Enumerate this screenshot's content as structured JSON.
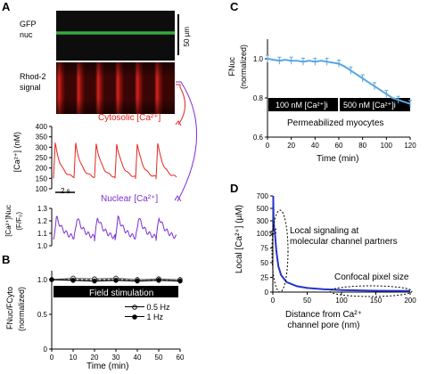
{
  "panels": {
    "A": {
      "letter": "A",
      "gfp_label_line1": "GFP",
      "gfp_label_line2": "nuc",
      "scale_label": "50 µm",
      "rhod_label_line1": "Rhod-2",
      "rhod_label_line2": "signal",
      "cyto_title": "Cytosolic [Ca²⁺]",
      "cyto_ylabel": "[Ca²⁺] (nM)",
      "time_scale": "2 s",
      "nuc_title": "Nuclear [Ca²⁺]",
      "nuc_ylabel_line1": "[Ca²⁺]Nuc",
      "nuc_ylabel_line2": "(F/F₀)"
    },
    "B": {
      "letter": "B",
      "bar_label": "Field stimulation",
      "ylabel_line1": "FNuc/FCyto",
      "ylabel_line2": "(normalized)",
      "xlabel": "Time (min)",
      "legend_05": "0.5 Hz",
      "legend_1": "1 Hz"
    },
    "C": {
      "letter": "C",
      "ylabel_line1": "FNuc",
      "ylabel_line2": "(normalized)",
      "xlabel": "Time (min)",
      "bar_left": "100 nM [Ca²⁺]i",
      "bar_right": "500 nM [Ca²⁺]i",
      "caption": "Permeabilized myocytes"
    },
    "D": {
      "letter": "D",
      "ylabel": "Local [Ca²⁺] (µM)",
      "xlabel_line1": "Distance from Ca²⁺",
      "xlabel_line2": "channel pore (nm)",
      "annotation_local": "Local signaling at molecular channel partners",
      "annotation_local_l1": "Local signaling at",
      "annotation_local_l2": "molecular channel partners",
      "annotation_pixel": "Confocal pixel size"
    }
  },
  "colors": {
    "cyto": "#e8231c",
    "nuc": "#7b2fd1",
    "panelC": "#5aa6e0",
    "panelD": "#2633c9",
    "gfp": "#2fa83a"
  },
  "chart_data": [
    {
      "id": "A-cyto",
      "type": "line",
      "ylabel": "[Ca²⁺] (nM)",
      "ylim": [
        100,
        400
      ],
      "yticks": [
        100,
        150,
        200,
        250,
        300,
        350,
        400
      ],
      "transients": 6,
      "baseline": 150,
      "peak": 320
    },
    {
      "id": "A-nuc",
      "type": "line",
      "ylim": [
        1.0,
        1.3
      ],
      "yticks": [
        1.0,
        1.1,
        1.2,
        1.3
      ],
      "transients": 6,
      "baseline": 1.05,
      "peak": 1.23
    },
    {
      "id": "B",
      "type": "line",
      "xlabel": "Time (min)",
      "ylim": [
        0,
        1.0
      ],
      "yticks": [
        0,
        0.5,
        1.0
      ],
      "xticks": [
        0,
        10,
        20,
        30,
        40,
        50,
        60
      ],
      "series": [
        {
          "name": "0.5 Hz",
          "x": [
            0,
            10,
            20,
            30,
            40,
            50,
            60
          ],
          "y": [
            1.0,
            1.02,
            1.01,
            1.02,
            1.0,
            1.01,
            1.0
          ]
        },
        {
          "name": "1 Hz",
          "x": [
            0,
            10,
            20,
            30,
            40,
            50,
            60
          ],
          "y": [
            1.0,
            0.99,
            0.98,
            0.99,
            0.98,
            0.99,
            0.98
          ]
        }
      ]
    },
    {
      "id": "C",
      "type": "line",
      "xlabel": "Time (min)",
      "xlim": [
        0,
        120
      ],
      "ylim": [
        0.6,
        1.1
      ],
      "xticks": [
        0,
        20,
        40,
        60,
        80,
        100,
        120
      ],
      "yticks": [
        0.6,
        0.8,
        1.0
      ],
      "x": [
        0,
        5,
        10,
        15,
        20,
        25,
        30,
        35,
        40,
        45,
        50,
        55,
        60,
        65,
        70,
        75,
        80,
        85,
        90,
        95,
        100,
        105,
        110,
        115,
        120
      ],
      "y": [
        1.0,
        0.995,
        0.99,
        0.995,
        0.99,
        0.99,
        0.985,
        0.99,
        0.985,
        0.99,
        0.985,
        0.98,
        0.975,
        0.96,
        0.94,
        0.92,
        0.9,
        0.88,
        0.86,
        0.84,
        0.82,
        0.8,
        0.79,
        0.78,
        0.77
      ]
    },
    {
      "id": "D",
      "type": "line",
      "xlabel": "Distance from Ca²⁺ channel pore (nm)",
      "ylabel": "Local [Ca²⁺] (µM)",
      "xlim": [
        0,
        200
      ],
      "xticks": [
        0,
        50,
        100,
        150,
        200
      ],
      "yticks_lower": [
        0,
        25,
        50,
        75,
        100
      ],
      "yticks_upper": [
        300,
        500,
        700
      ],
      "x": [
        0.5,
        1,
        2,
        3,
        5,
        8,
        12,
        20,
        35,
        50,
        75,
        100,
        150,
        200
      ],
      "y": [
        700,
        350,
        175,
        115,
        70,
        44,
        29,
        17,
        10,
        7,
        4.7,
        3.5,
        2.3,
        1.8
      ]
    }
  ]
}
